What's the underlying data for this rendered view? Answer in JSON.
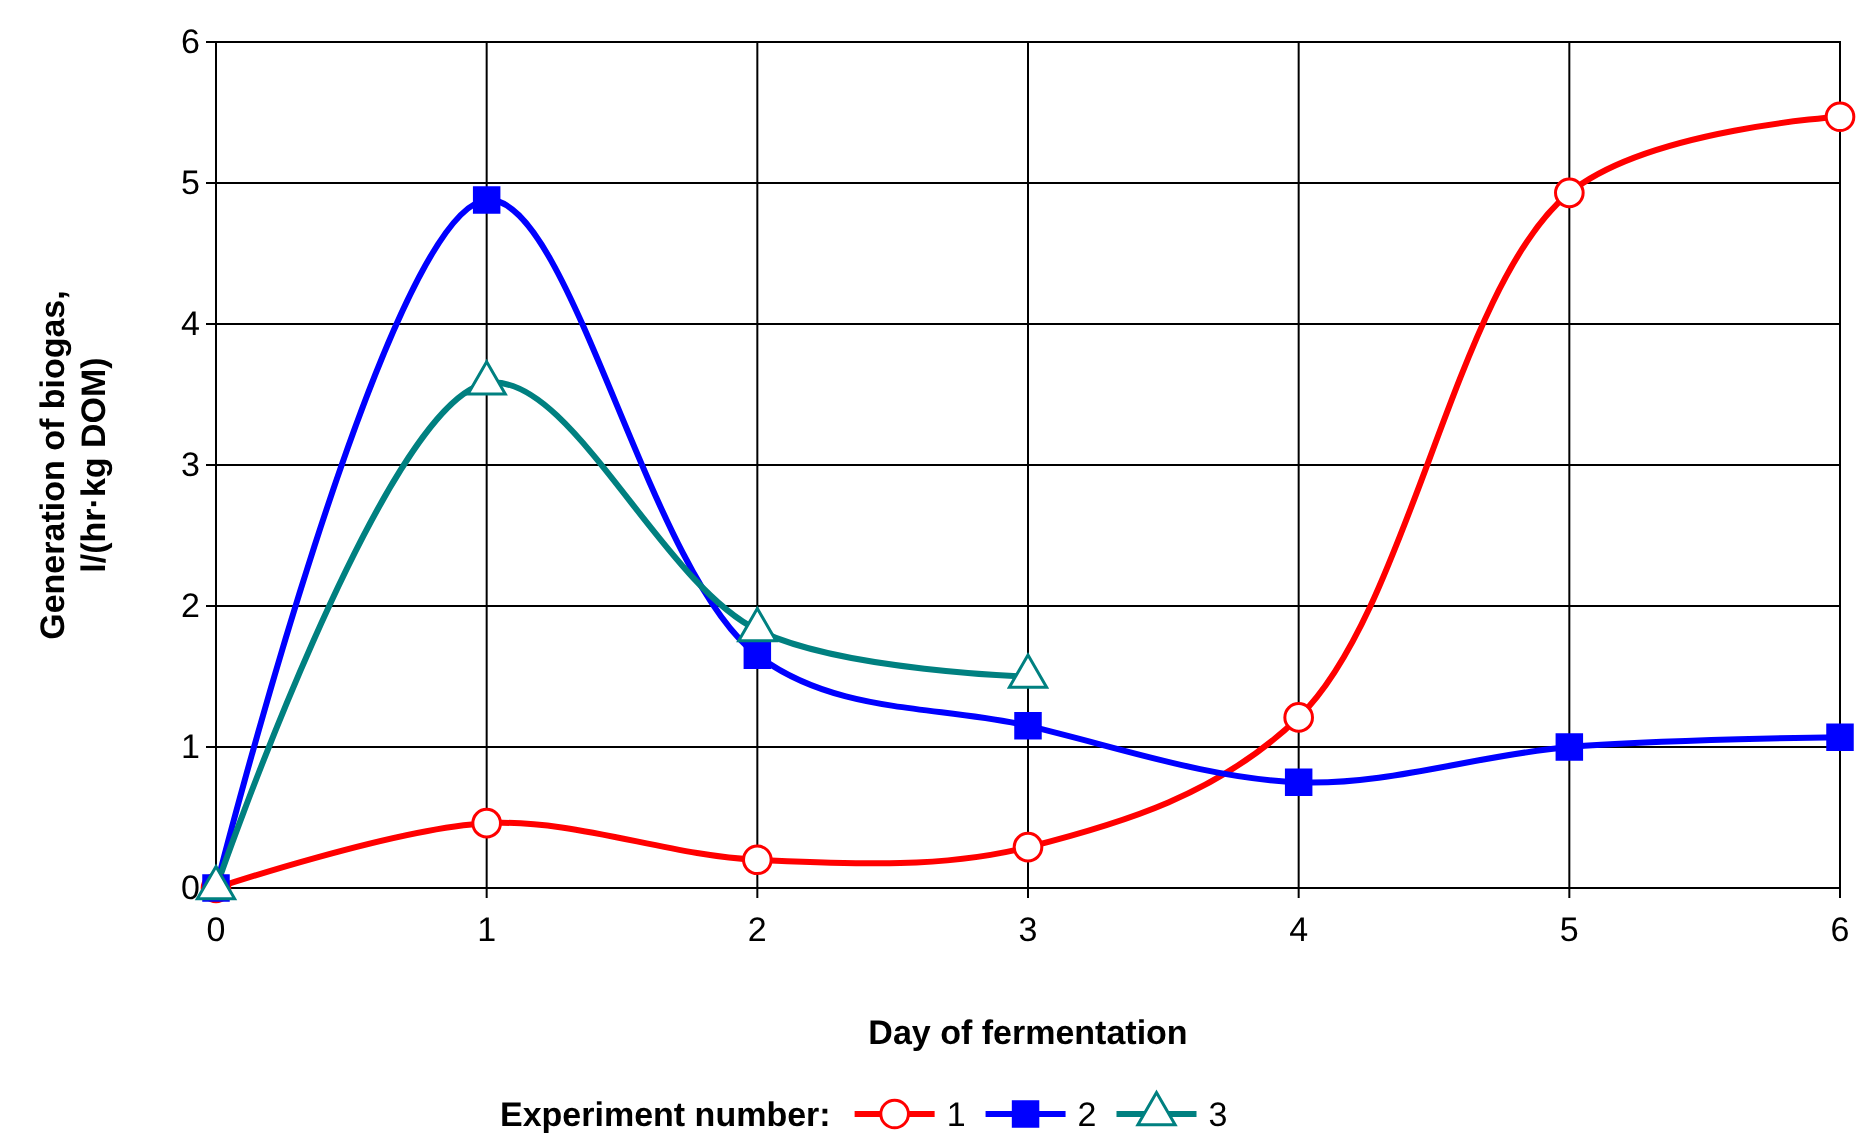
{
  "chart_data": {
    "type": "line",
    "xlabel": "Day of fermentation",
    "ylabel": "Generation of biogas,\nl/(hr·kg DOM)",
    "legend_title": "Experiment number:",
    "x": [
      0,
      1,
      2,
      3,
      4,
      5,
      6
    ],
    "xlim": [
      0,
      6
    ],
    "xticks": [
      0,
      1,
      2,
      3,
      4,
      5,
      6
    ],
    "ylim": [
      0,
      6
    ],
    "yticks": [
      0,
      1,
      2,
      3,
      4,
      5,
      6
    ],
    "grid": true,
    "legend": "bottom",
    "line_style": "solid",
    "series": [
      {
        "name": "1",
        "color": "#ff0000",
        "marker": "circle",
        "values": [
          0,
          0.46,
          0.2,
          0.29,
          1.21,
          4.93,
          5.47
        ]
      },
      {
        "name": "2",
        "color": "#0000ff",
        "marker": "square",
        "values": [
          0,
          4.88,
          1.65,
          1.15,
          0.75,
          1.0,
          1.07
        ]
      },
      {
        "name": "3",
        "color": "#008080",
        "marker": "triangle",
        "values": [
          0,
          3.58,
          1.83,
          1.5,
          null,
          null,
          null
        ]
      }
    ]
  }
}
